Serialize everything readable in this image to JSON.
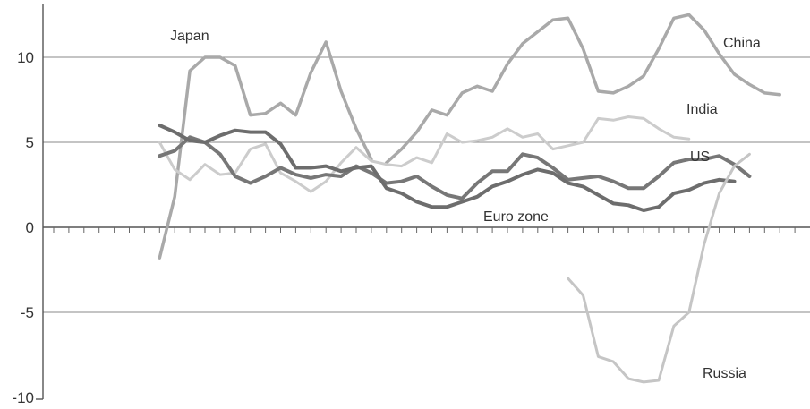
{
  "chart_data": {
    "type": "line",
    "title": "",
    "xlabel": "",
    "ylabel": "",
    "ylim": [
      -10,
      12
    ],
    "yticks": [
      -10,
      -5,
      0,
      5,
      10
    ],
    "grid": "horizontal",
    "legend": "inline labels",
    "x": [
      0,
      1,
      2,
      3,
      4,
      5,
      6,
      7,
      8,
      9,
      10,
      11,
      12,
      13,
      14,
      15,
      16,
      17,
      18,
      19,
      20,
      21,
      22,
      23,
      24,
      25,
      26,
      27,
      28,
      29,
      30,
      31,
      32,
      33,
      34,
      35,
      36,
      37,
      38,
      39,
      40,
      41,
      42,
      43,
      44,
      45,
      46,
      47,
      48,
      49
    ],
    "series": [
      {
        "name": "Japan",
        "color": "#a9a9a9",
        "width": 3.5,
        "values": [
          null,
          null,
          null,
          null,
          null,
          null,
          null,
          -1.8,
          1.8,
          9.2,
          10.0,
          10.0,
          9.5,
          6.6,
          6.7,
          7.3,
          6.6,
          9.1,
          10.9,
          8.0,
          5.8,
          4.0,
          null,
          null,
          null,
          null,
          null,
          null,
          null,
          null,
          null,
          null,
          null,
          null,
          null,
          null,
          null,
          null,
          null,
          null,
          null,
          null,
          null,
          null,
          null,
          null,
          null,
          null,
          null,
          null
        ]
      },
      {
        "name": "China",
        "color": "#a9a9a9",
        "width": 3.5,
        "values": [
          null,
          null,
          null,
          null,
          null,
          null,
          null,
          null,
          null,
          null,
          null,
          null,
          null,
          null,
          null,
          null,
          null,
          null,
          null,
          null,
          null,
          null,
          3.8,
          4.6,
          5.6,
          6.9,
          6.6,
          7.9,
          8.3,
          8.0,
          9.6,
          10.8,
          11.5,
          12.2,
          12.3,
          10.5,
          8.0,
          7.9,
          8.3,
          8.9,
          10.5,
          12.3,
          12.5,
          11.6,
          10.2,
          9.0,
          8.4,
          7.9,
          7.8,
          null
        ]
      },
      {
        "name": "India",
        "color": "#cccccc",
        "width": 3,
        "values": [
          null,
          null,
          null,
          null,
          null,
          null,
          null,
          5.0,
          3.4,
          2.8,
          3.7,
          3.1,
          3.2,
          4.6,
          4.9,
          3.2,
          2.7,
          2.1,
          2.7,
          3.8,
          4.7,
          3.9,
          3.7,
          3.6,
          4.1,
          3.8,
          5.5,
          5.0,
          5.1,
          5.3,
          5.8,
          5.3,
          5.5,
          4.6,
          4.8,
          5.0,
          6.4,
          6.3,
          6.5,
          6.4,
          5.8,
          5.3,
          5.2,
          null,
          null,
          null,
          null,
          null,
          null,
          null
        ]
      },
      {
        "name": "US",
        "color": "#777777",
        "width": 4,
        "values": [
          null,
          null,
          null,
          null,
          null,
          null,
          null,
          4.2,
          4.5,
          5.3,
          5.0,
          4.3,
          3.0,
          2.6,
          3.0,
          3.5,
          3.1,
          2.9,
          3.1,
          3.0,
          3.6,
          3.2,
          2.6,
          2.7,
          3.0,
          2.4,
          1.9,
          1.7,
          2.6,
          3.3,
          3.3,
          4.3,
          4.1,
          3.5,
          2.8,
          2.9,
          3.0,
          2.7,
          2.3,
          2.3,
          3.0,
          3.8,
          4.0,
          4.0,
          4.2,
          3.7,
          3.0,
          null,
          null,
          null
        ]
      },
      {
        "name": "Euro zone",
        "color": "#6d6d6d",
        "width": 4,
        "values": [
          null,
          null,
          null,
          null,
          null,
          null,
          null,
          6.0,
          5.6,
          5.1,
          5.0,
          5.4,
          5.7,
          5.6,
          5.6,
          4.9,
          3.5,
          3.5,
          3.6,
          3.3,
          3.5,
          3.6,
          2.3,
          2.0,
          1.5,
          1.2,
          1.2,
          1.5,
          1.8,
          2.4,
          2.7,
          3.1,
          3.4,
          3.2,
          2.6,
          2.4,
          1.9,
          1.4,
          1.3,
          1.0,
          1.2,
          2.0,
          2.2,
          2.6,
          2.8,
          2.7,
          null,
          null,
          null,
          null
        ]
      },
      {
        "name": "Russia",
        "color": "#c5c5c5",
        "width": 3,
        "values": [
          null,
          null,
          null,
          null,
          null,
          null,
          null,
          null,
          null,
          null,
          null,
          null,
          null,
          null,
          null,
          null,
          null,
          null,
          null,
          null,
          null,
          null,
          null,
          null,
          null,
          null,
          null,
          null,
          null,
          null,
          null,
          null,
          null,
          null,
          -3.0,
          -4.0,
          -7.6,
          -7.9,
          -8.9,
          -9.1,
          -9.0,
          -5.8,
          -5.0,
          -1.0,
          2.0,
          3.6,
          4.3,
          null,
          null,
          null
        ]
      }
    ]
  },
  "y_ticks": [
    "10",
    "5",
    "0",
    "-5",
    "-10"
  ],
  "series_labels": {
    "japan": "Japan",
    "china": "China",
    "india": "India",
    "us": "US",
    "euro_zone": "Euro zone",
    "russia": "Russia"
  }
}
